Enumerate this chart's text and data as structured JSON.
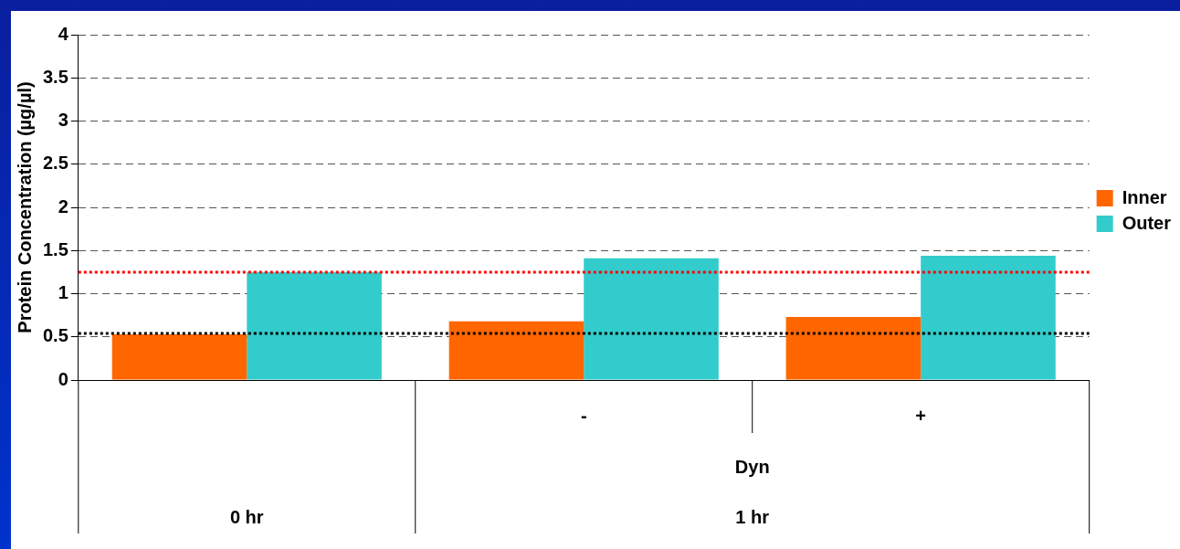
{
  "chart_data": {
    "type": "bar",
    "ylabel": "Protein Concentration (µg/µl)",
    "categories": [
      null,
      "-",
      "+"
    ],
    "series": [
      {
        "name": "Inner",
        "color": "#ff6600",
        "values": [
          0.53,
          0.68,
          0.73
        ]
      },
      {
        "name": "Outer",
        "color": "#33cccc",
        "values": [
          1.25,
          1.41,
          1.44
        ]
      }
    ],
    "ylim": [
      0,
      4
    ],
    "yticks": [
      0,
      0.5,
      1,
      1.5,
      2,
      2.5,
      3,
      3.5,
      4
    ],
    "grid": "y",
    "legend": "right",
    "ref_lines": [
      {
        "axis": "y",
        "value": 1.25,
        "color": "#ff0000",
        "line_style": "dotted"
      },
      {
        "axis": "y",
        "value": 0.54,
        "color": "#000000",
        "line_style": "dotted"
      }
    ],
    "annotations": [
      "0 hr",
      "Dyn",
      "1 hr"
    ]
  }
}
